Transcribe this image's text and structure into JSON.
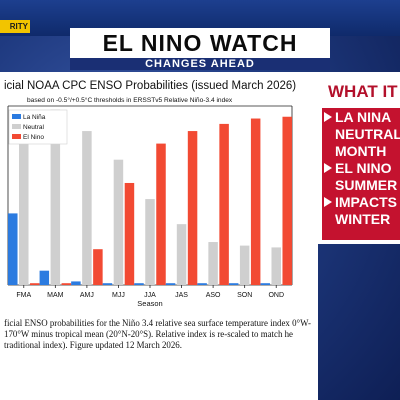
{
  "brand_tag": "RITY",
  "header": {
    "title": "EL NINO WATCH",
    "subtitle": "CHANGES AHEAD"
  },
  "side_panel": {
    "heading": "WHAT IT",
    "items": [
      "LA NINA",
      "NEUTRAL",
      "MONTH",
      "EL NINO",
      "SUMMER",
      "IMPACTS",
      "WINTER"
    ],
    "bulleted": [
      true,
      false,
      false,
      true,
      false,
      true,
      false
    ]
  },
  "chart_title": "icial NOAA CPC ENSO Probabilities (issued March 2026)",
  "chart_subtitle": "based on -0.5°/+0.5°C thresholds in ERSSTv5 Relative Niño-3.4 index",
  "caption": "ficial ENSO probabilities for the Niño 3.4 relative sea surface temperature index 0°W-170°W minus tropical mean (20°N-20°S). Relative index is re-scaled to match he traditional index). Figure updated 12 March 2026.",
  "colors": {
    "la_nina": "#2b7be0",
    "neutral": "#cfcfcf",
    "el_nino": "#f24a33"
  },
  "chart_data": {
    "type": "bar",
    "title": "icial NOAA CPC ENSO Probabilities (issued March 2026)",
    "subtitle": "based on -0.5°/+0.5°C thresholds in ERSSTv5 Relative Niño-3.4 index",
    "xlabel": "Season",
    "ylabel": "",
    "ylim": [
      0,
      100
    ],
    "grid": false,
    "legend_position": "top-left",
    "categories": [
      "FMA",
      "MAM",
      "AMJ",
      "MJJ",
      "JJA",
      "JAS",
      "ASO",
      "SON",
      "OND"
    ],
    "series": [
      {
        "name": "La Niña",
        "values": [
          40,
          8,
          2,
          1,
          1,
          1,
          1,
          1,
          1
        ]
      },
      {
        "name": "Neutral",
        "values": [
          86,
          98,
          86,
          70,
          48,
          34,
          24,
          22,
          21
        ]
      },
      {
        "name": "El Nino",
        "values": [
          1,
          1,
          20,
          57,
          79,
          86,
          90,
          93,
          94
        ]
      }
    ]
  }
}
